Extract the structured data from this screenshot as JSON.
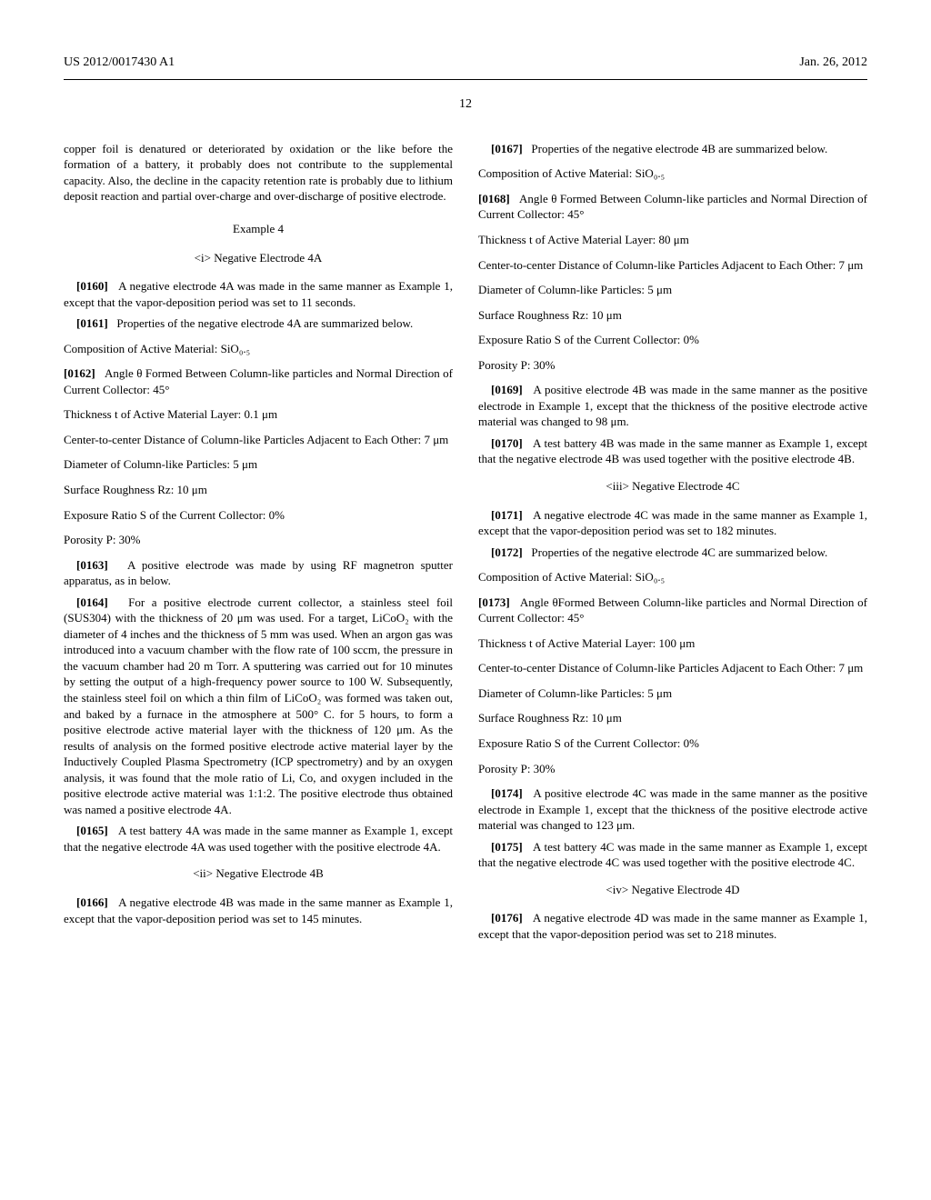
{
  "header": {
    "pub_number": "US 2012/0017430 A1",
    "pub_date": "Jan. 26, 2012"
  },
  "page_number": "12",
  "left_column": {
    "intro": "copper foil is denatured or deteriorated by oxidation or the like before the formation of a battery, it probably does not contribute to the supplemental capacity. Also, the decline in the capacity retention rate is probably due to lithium deposit reaction and partial over-charge and over-discharge of positive electrode.",
    "example_heading": "Example 4",
    "section_i_title": "<i> Negative Electrode 4A",
    "p0160_num": "[0160]",
    "p0160": "A negative electrode 4A was made in the same manner as Example 1, except that the vapor-deposition period was set to 11 seconds.",
    "p0161_num": "[0161]",
    "p0161": "Properties of the negative electrode 4A are summarized below.",
    "comp_4a": "Composition of Active Material: SiO₀.₅",
    "p0162_num": "[0162]",
    "p0162": "Angle θ Formed Between Column-like particles and Normal Direction of Current Collector: 45°",
    "thick_4a": "Thickness t of Active Material Layer: 0.1 μm",
    "center_4a": "Center-to-center Distance of Column-like Particles Adjacent to Each Other: 7 μm",
    "diam_4a": "Diameter of Column-like Particles: 5 μm",
    "rough_4a": "Surface Roughness Rz: 10 μm",
    "expos_4a": "Exposure Ratio S of the Current Collector: 0%",
    "poros_4a": "Porosity P: 30%",
    "p0163_num": "[0163]",
    "p0163": "A positive electrode was made by using RF magnetron sputter apparatus, as in below.",
    "p0164_num": "[0164]",
    "p0164": "For a positive electrode current collector, a stainless steel foil (SUS304) with the thickness of 20 μm was used. For a target, LiCoO₂ with the diameter of 4 inches and the thickness of 5 mm was used. When an argon gas was introduced into a vacuum chamber with the flow rate of 100 sccm, the pressure in the vacuum chamber had 20 m Torr. A sputtering was carried out for 10 minutes by setting the output of a high-frequency power source to 100 W. Subsequently, the stainless steel foil on which a thin film of LiCoO₂ was formed was taken out, and baked by a furnace in the atmosphere at 500° C. for 5 hours, to form a positive electrode active material layer with the thickness of 120 μm. As the results of analysis on the formed positive electrode active material layer by the Inductively Coupled Plasma Spectrometry (ICP spectrometry) and by an oxygen analysis, it was found that the mole ratio of Li, Co, and oxygen included in the positive electrode active material was 1:1:2. The positive electrode thus obtained was named a positive electrode 4A.",
    "p0165_num": "[0165]",
    "p0165": "A test battery 4A was made in the same manner as Example 1, except that the negative electrode 4A was used together with the positive electrode 4A.",
    "section_ii_title": "<ii> Negative Electrode 4B",
    "p0166_num": "[0166]",
    "p0166": "A negative electrode 4B was made in the same manner as Example 1, except that the vapor-deposition period was set to 145 minutes."
  },
  "right_column": {
    "p0167_num": "[0167]",
    "p0167": "Properties of the negative electrode 4B are summarized below.",
    "comp_4b": "Composition of Active Material: SiO₀.₅",
    "p0168_num": "[0168]",
    "p0168": "Angle θ Formed Between Column-like particles and Normal Direction of Current Collector: 45°",
    "thick_4b": "Thickness t of Active Material Layer: 80 μm",
    "center_4b": "Center-to-center Distance of Column-like Particles Adjacent to Each Other: 7 μm",
    "diam_4b": "Diameter of Column-like Particles: 5 μm",
    "rough_4b": "Surface Roughness Rz: 10 μm",
    "expos_4b": "Exposure Ratio S of the Current Collector: 0%",
    "poros_4b": "Porosity P: 30%",
    "p0169_num": "[0169]",
    "p0169": "A positive electrode 4B was made in the same manner as the positive electrode in Example 1, except that the thickness of the positive electrode active material was changed to 98 μm.",
    "p0170_num": "[0170]",
    "p0170": "A test battery 4B was made in the same manner as Example 1, except that the negative electrode 4B was used together with the positive electrode 4B.",
    "section_iii_title": "<iii> Negative Electrode 4C",
    "p0171_num": "[0171]",
    "p0171": "A negative electrode 4C was made in the same manner as Example 1, except that the vapor-deposition period was set to 182 minutes.",
    "p0172_num": "[0172]",
    "p0172": "Properties of the negative electrode 4C are summarized below.",
    "comp_4c": "Composition of Active Material: SiO₀.₅",
    "p0173_num": "[0173]",
    "p0173": "Angle θFormed Between Column-like particles and Normal Direction of Current Collector: 45°",
    "thick_4c": "Thickness t of Active Material Layer: 100 μm",
    "center_4c": "Center-to-center Distance of Column-like Particles Adjacent to Each Other: 7 μm",
    "diam_4c": "Diameter of Column-like Particles: 5 μm",
    "rough_4c": "Surface Roughness Rz: 10 μm",
    "expos_4c": "Exposure Ratio S of the Current Collector: 0%",
    "poros_4c": "Porosity P: 30%",
    "p0174_num": "[0174]",
    "p0174": "A positive electrode 4C was made in the same manner as the positive electrode in Example 1, except that the thickness of the positive electrode active material was changed to 123 μm.",
    "p0175_num": "[0175]",
    "p0175": "A test battery 4C was made in the same manner as Example 1, except that the negative electrode 4C was used together with the positive electrode 4C.",
    "section_iv_title": "<iv> Negative Electrode 4D",
    "p0176_num": "[0176]",
    "p0176": "A negative electrode 4D was made in the same manner as Example 1, except that the vapor-deposition period was set to 218 minutes."
  }
}
